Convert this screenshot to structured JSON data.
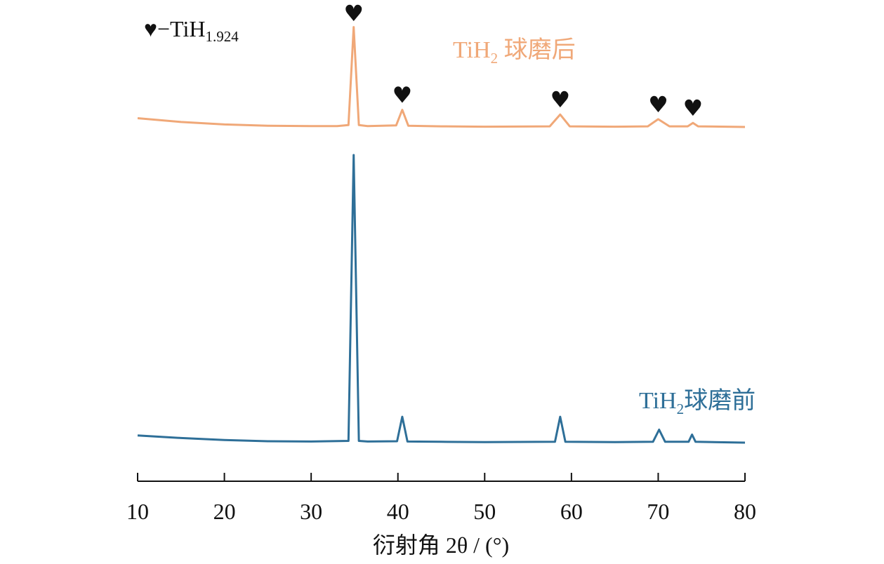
{
  "chart_data": {
    "type": "line",
    "xlabel": "衍射角 2θ / (°)",
    "xlim": [
      10,
      80
    ],
    "xticks": [
      10,
      20,
      30,
      40,
      50,
      60,
      70,
      80
    ],
    "y_axis_shown": false,
    "grid": false,
    "legend": {
      "marker": "♥",
      "text": "−TiH",
      "sub": "1.924",
      "placement": "top-left"
    },
    "peak_marker_symbol": "♥",
    "peak_markers": [
      34.9,
      40.5,
      58.7,
      70.0,
      74.0
    ],
    "series": [
      {
        "name": "TiH2 球磨后",
        "label_main": "TiH",
        "label_sub": "2",
        "label_tail": " 球磨后",
        "color": "#f0a878",
        "values": [
          [
            10,
            2.8
          ],
          [
            15,
            1.6
          ],
          [
            20,
            0.8
          ],
          [
            25,
            0.4
          ],
          [
            30,
            0.3
          ],
          [
            33,
            0.3
          ],
          [
            34.3,
            0.6
          ],
          [
            34.9,
            32.0
          ],
          [
            35.5,
            0.6
          ],
          [
            36.5,
            0.3
          ],
          [
            39.8,
            0.5
          ],
          [
            40.5,
            5.5
          ],
          [
            41.2,
            0.4
          ],
          [
            45,
            0.2
          ],
          [
            50,
            0.1
          ],
          [
            57.5,
            0.2
          ],
          [
            58.7,
            4.0
          ],
          [
            59.8,
            0.2
          ],
          [
            65,
            0.1
          ],
          [
            68.8,
            0.2
          ],
          [
            70.0,
            2.5
          ],
          [
            71.3,
            0.2
          ],
          [
            73.4,
            0.2
          ],
          [
            74.0,
            1.3
          ],
          [
            74.6,
            0.2
          ],
          [
            80,
            0.0
          ]
        ]
      },
      {
        "name": "TiH2球磨前",
        "label_main": "TiH",
        "label_sub": "2",
        "label_tail": "球磨前",
        "color": "#2e6f98",
        "values": [
          [
            10,
            2.5
          ],
          [
            15,
            1.6
          ],
          [
            20,
            0.9
          ],
          [
            25,
            0.5
          ],
          [
            30,
            0.4
          ],
          [
            34.3,
            0.6
          ],
          [
            34.9,
            100.0
          ],
          [
            35.5,
            0.6
          ],
          [
            36.5,
            0.4
          ],
          [
            39.9,
            0.5
          ],
          [
            40.5,
            9.0
          ],
          [
            41.1,
            0.4
          ],
          [
            45,
            0.3
          ],
          [
            50,
            0.2
          ],
          [
            58.1,
            0.3
          ],
          [
            58.7,
            9.0
          ],
          [
            59.3,
            0.3
          ],
          [
            65,
            0.2
          ],
          [
            69.4,
            0.3
          ],
          [
            70.1,
            4.5
          ],
          [
            70.8,
            0.3
          ],
          [
            73.5,
            0.3
          ],
          [
            73.9,
            2.8
          ],
          [
            74.3,
            0.3
          ],
          [
            80,
            0.0
          ]
        ]
      }
    ]
  }
}
